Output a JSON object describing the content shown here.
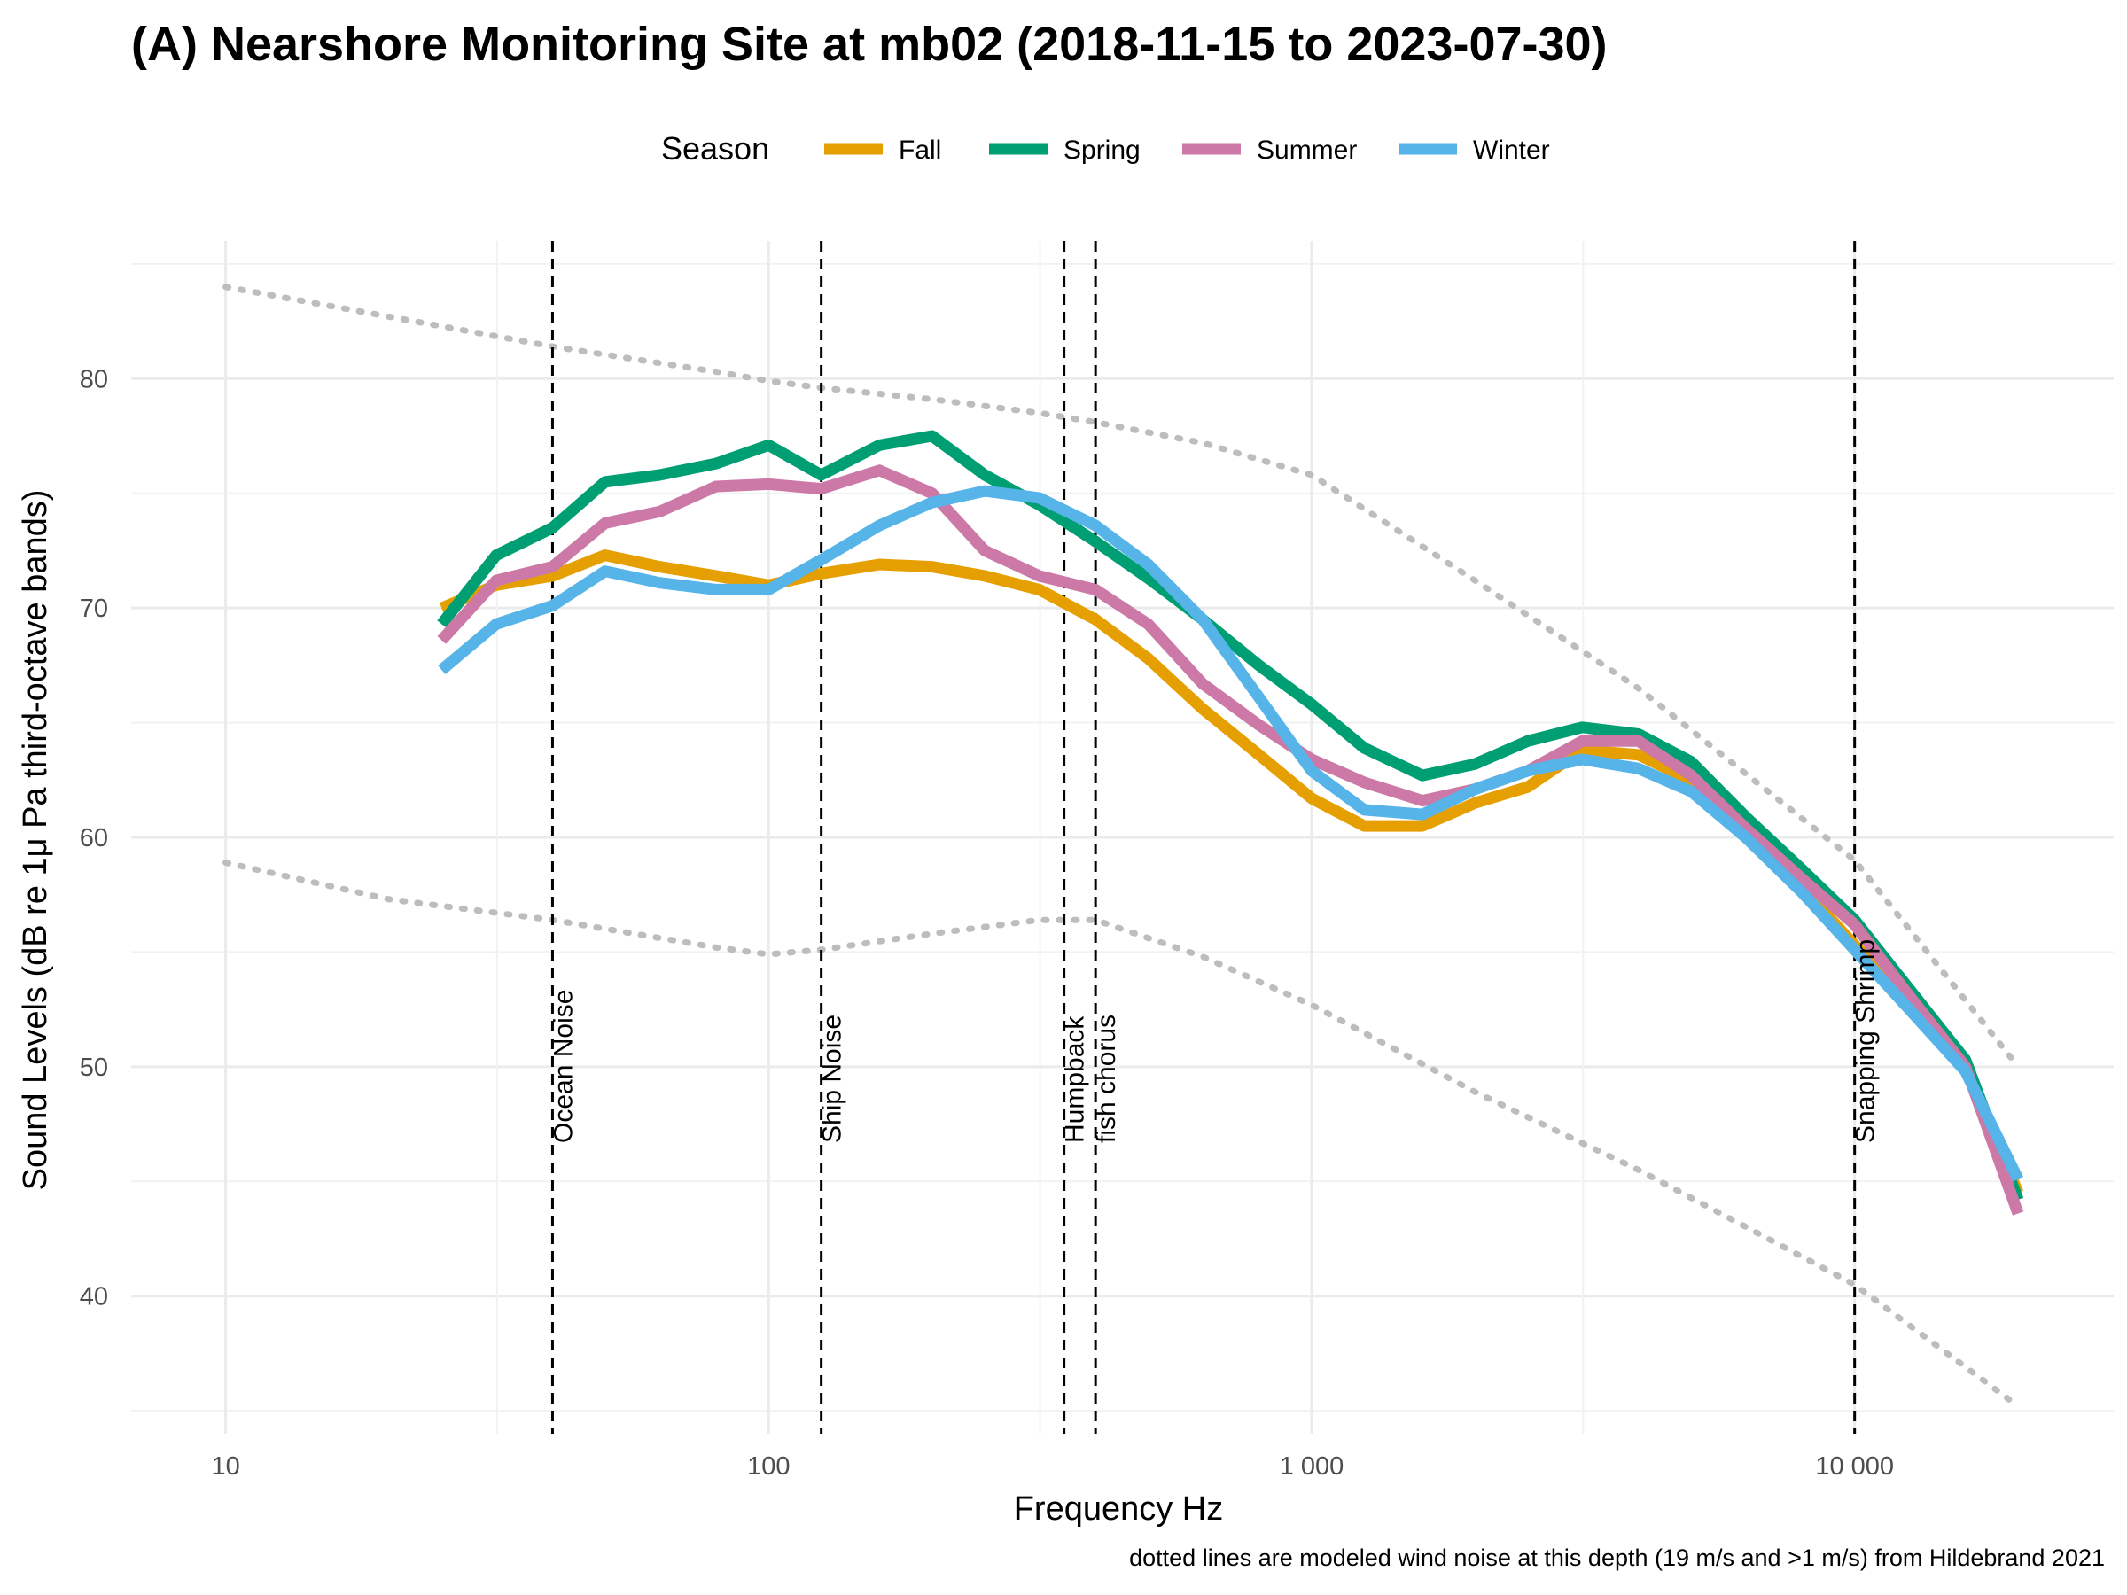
{
  "chart_data": {
    "type": "line",
    "title": "(A) Nearshore Monitoring Site at mb02 (2018-11-15 to 2023-07-30)",
    "xlabel": "Frequency Hz",
    "ylabel": "Sound Levels (dB re 1μ Pa third-octave bands)",
    "caption": "dotted lines are modeled wind noise at this depth (19 m/s and >1 m/s) from Hildebrand 2021",
    "x_scale": "log",
    "xlim": [
      6.7,
      30000
    ],
    "ylim": [
      34,
      86
    ],
    "x_ticks": [
      10,
      100,
      1000,
      10000
    ],
    "x_tick_labels": [
      "10",
      "100",
      "1 000",
      "10 000"
    ],
    "y_ticks": [
      40,
      50,
      60,
      70,
      80
    ],
    "y_tick_labels": [
      "40",
      "50",
      "60",
      "70",
      "80"
    ],
    "grid": true,
    "legend": {
      "title": "Season",
      "position": "top"
    },
    "x": [
      25,
      31.5,
      40,
      50,
      63,
      80,
      100,
      125,
      160,
      200,
      250,
      315,
      400,
      500,
      630,
      800,
      1000,
      1250,
      1600,
      2000,
      2500,
      3150,
      4000,
      5000,
      6300,
      8000,
      10000,
      12500,
      16000,
      20000
    ],
    "series": [
      {
        "name": "Fall",
        "color": "#E69F00",
        "values": [
          70.0,
          71.0,
          71.4,
          72.3,
          71.8,
          71.4,
          71.0,
          71.5,
          71.9,
          71.8,
          71.4,
          70.8,
          69.5,
          67.8,
          65.6,
          63.6,
          61.7,
          60.5,
          60.5,
          61.5,
          62.2,
          63.8,
          63.6,
          62.5,
          60.2,
          57.8,
          55.3,
          53.0,
          50.0,
          44.5
        ]
      },
      {
        "name": "Spring",
        "color": "#009E73",
        "values": [
          69.3,
          72.3,
          73.5,
          75.5,
          75.8,
          76.3,
          77.1,
          75.8,
          77.1,
          77.5,
          75.8,
          74.5,
          72.9,
          71.3,
          69.5,
          67.5,
          65.8,
          63.9,
          62.7,
          63.2,
          64.2,
          64.8,
          64.5,
          63.3,
          60.9,
          58.6,
          56.4,
          53.5,
          50.3,
          44.2
        ]
      },
      {
        "name": "Summer",
        "color": "#CC79A7",
        "values": [
          68.6,
          71.2,
          71.8,
          73.7,
          74.2,
          75.3,
          75.4,
          75.2,
          76.0,
          75.0,
          72.5,
          71.4,
          70.8,
          69.3,
          66.7,
          64.9,
          63.4,
          62.4,
          61.6,
          62.1,
          62.9,
          64.2,
          64.2,
          62.7,
          60.4,
          58.2,
          56.2,
          53.2,
          50.0,
          43.6
        ]
      },
      {
        "name": "Winter",
        "color": "#56B4E9",
        "values": [
          67.3,
          69.3,
          70.1,
          71.6,
          71.1,
          70.8,
          70.8,
          72.1,
          73.6,
          74.6,
          75.1,
          74.8,
          73.6,
          71.9,
          69.5,
          66.1,
          62.9,
          61.2,
          61.0,
          62.1,
          62.9,
          63.4,
          63.0,
          62.0,
          60.0,
          57.6,
          55.1,
          52.6,
          49.8,
          45.1
        ]
      }
    ],
    "reference_lines": {
      "style": "dotted",
      "color": "#bdbdbd",
      "x": [
        10,
        20,
        40,
        80,
        100,
        125,
        200,
        315,
        400,
        630,
        1000,
        2000,
        4000,
        10000,
        20000
      ],
      "upper_values": [
        84.0,
        82.7,
        81.4,
        80.3,
        79.9,
        79.6,
        79.1,
        78.5,
        78.1,
        77.2,
        75.8,
        71.2,
        66.5,
        59.0,
        50.0
      ],
      "lower_values": [
        58.9,
        57.3,
        56.4,
        55.2,
        54.9,
        55.1,
        55.8,
        56.4,
        56.4,
        54.8,
        52.7,
        48.9,
        45.5,
        40.5,
        35.2
      ]
    },
    "annotations": [
      {
        "x": 40,
        "labels": [
          "Ocean Noise"
        ]
      },
      {
        "x": 125,
        "labels": [
          "Ship Noise"
        ]
      },
      {
        "x": 350,
        "labels": [
          "Humpback"
        ]
      },
      {
        "x": 400,
        "labels": [
          "fish chorus"
        ]
      },
      {
        "x": 10000,
        "labels": [
          "Snapping Shrimp"
        ]
      }
    ]
  }
}
